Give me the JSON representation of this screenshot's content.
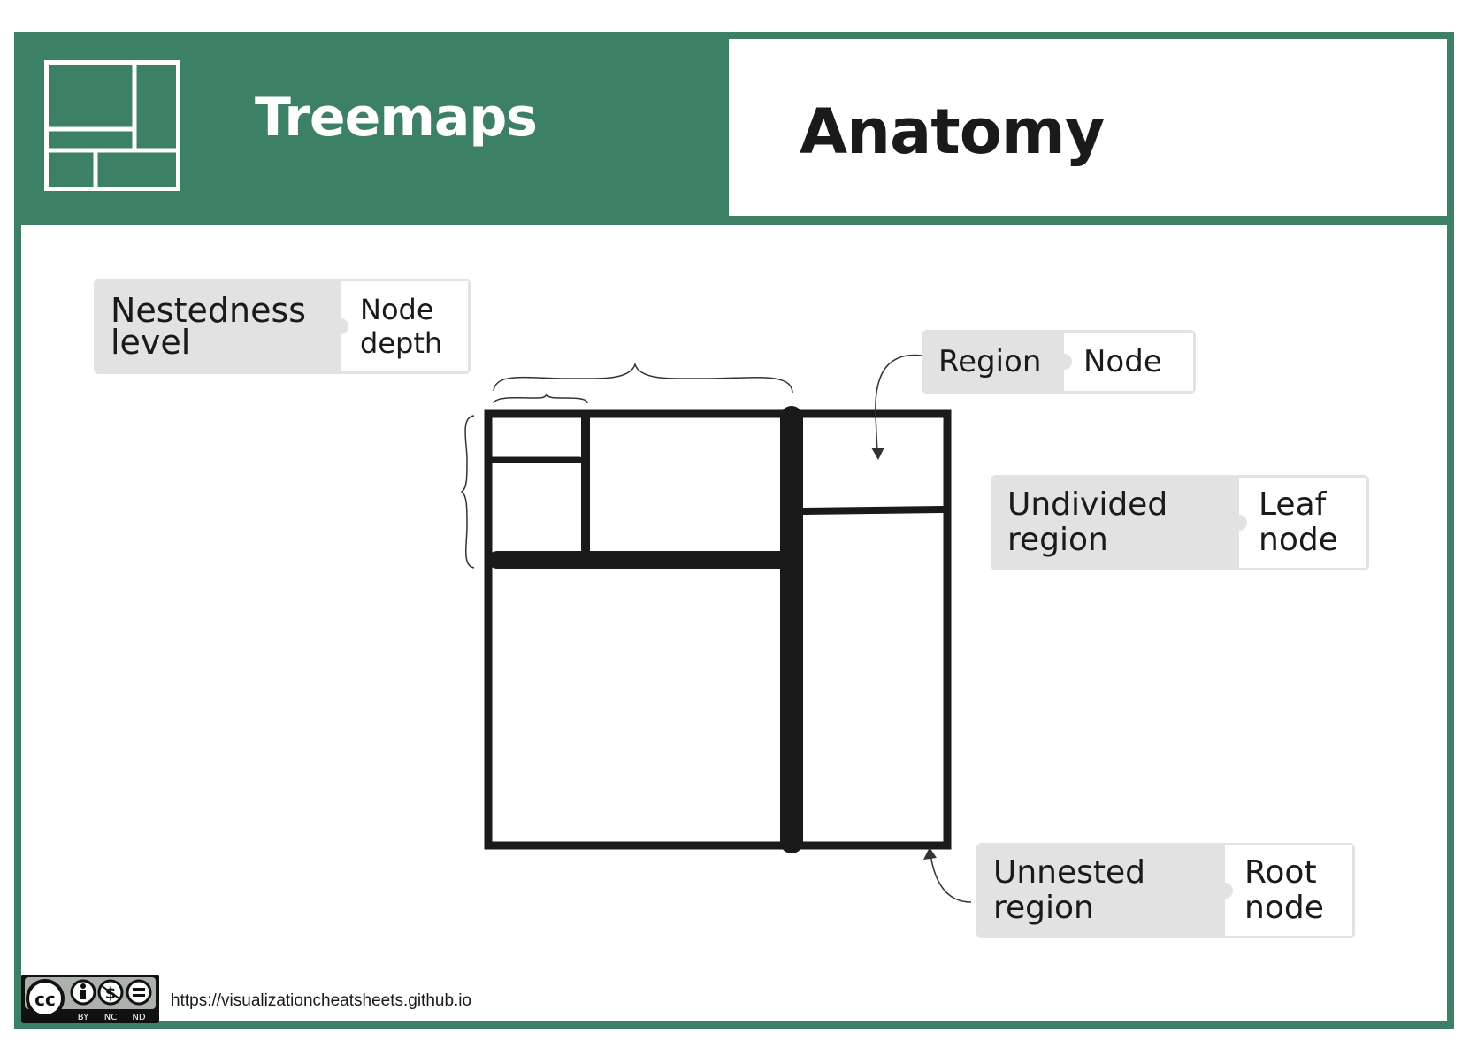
{
  "header": {
    "title": "Treemaps",
    "section": "Anatomy",
    "icon": "treemap-icon"
  },
  "tags": {
    "nestedness": {
      "term": "Nestedness\nlevel",
      "definition": "Node\ndepth"
    },
    "region": {
      "term": "Region",
      "definition": "Node"
    },
    "undivided": {
      "term": "Undivided\nregion",
      "definition": "Leaf\nnode"
    },
    "unnested": {
      "term": "Unnested\nregion",
      "definition": "Root\nnode"
    }
  },
  "footer": {
    "license": "cc-by-nc-nd-icon",
    "license_labels": [
      "BY",
      "NC",
      "ND"
    ],
    "url": "https://visualizationcheatsheets.github.io"
  },
  "colors": {
    "brand": "#3c8066",
    "tag_fill": "#e2e2e2",
    "ink": "#1a1a1a"
  }
}
